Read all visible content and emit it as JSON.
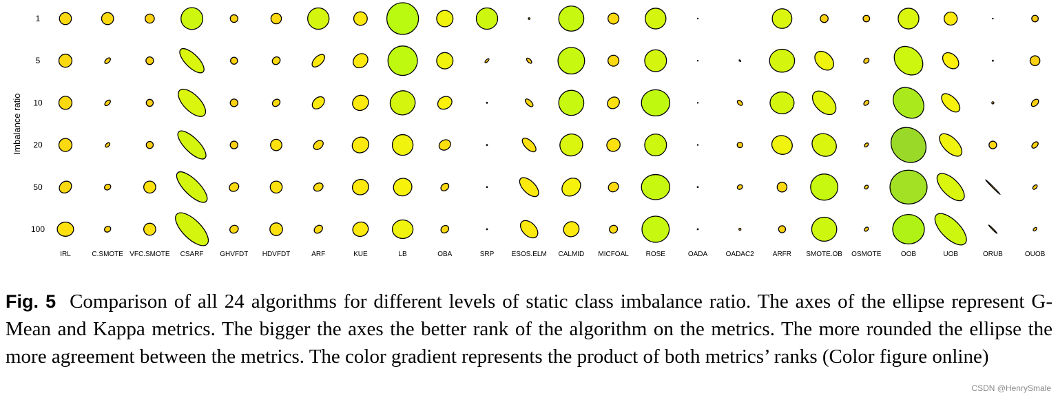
{
  "chart_data": {
    "type": "ellipse-matrix",
    "ylabel": "Imbalance ratio",
    "rows": [
      "1",
      "5",
      "10",
      "20",
      "50",
      "100"
    ],
    "columns": [
      "IRL",
      "C.SMOTE",
      "VFC.SMOTE",
      "CSARF",
      "GHVFDT",
      "HDVFDT",
      "ARF",
      "KUE",
      "LB",
      "OBA",
      "SRP",
      "ESOS.ELM",
      "CALMID",
      "MICFOAL",
      "ROSE",
      "OADA",
      "OADAC2",
      "ARFR",
      "SMOTE.OB",
      "OSMOTE",
      "OOB",
      "UOB",
      "ORUB",
      "OUOB"
    ],
    "cells": [
      [
        [
          0.55,
          0.55,
          0,
          0.35
        ],
        [
          0.55,
          0.55,
          0,
          0.35
        ],
        [
          0.42,
          0.42,
          0,
          0.3
        ],
        [
          1.0,
          1.0,
          0,
          0.85
        ],
        [
          0.35,
          0.35,
          0,
          0.3
        ],
        [
          0.48,
          0.48,
          0,
          0.35
        ],
        [
          0.98,
          0.98,
          0,
          0.8
        ],
        [
          0.62,
          0.62,
          0,
          0.45
        ],
        [
          1.45,
          1.45,
          0,
          1.0
        ],
        [
          0.75,
          0.75,
          0,
          0.6
        ],
        [
          0.98,
          0.98,
          0,
          0.85
        ],
        [
          0.08,
          0.08,
          0,
          0.2
        ],
        [
          1.15,
          1.15,
          0,
          0.9
        ],
        [
          0.5,
          0.5,
          0,
          0.35
        ],
        [
          0.95,
          0.95,
          0,
          0.8
        ],
        [
          0.04,
          0.04,
          0,
          0.2
        ],
        [
          0,
          0,
          0,
          0
        ],
        [
          0.9,
          0.9,
          0,
          0.75
        ],
        [
          0.36,
          0.36,
          0,
          0.3
        ],
        [
          0.3,
          0.3,
          0,
          0.25
        ],
        [
          0.95,
          0.95,
          0,
          0.75
        ],
        [
          0.6,
          0.6,
          0,
          0.45
        ],
        [
          0.04,
          0.04,
          0,
          0.2
        ],
        [
          0.3,
          0.3,
          0,
          0.25
        ]
      ],
      [
        [
          0.6,
          0.6,
          0,
          0.35
        ],
        [
          0.32,
          0.18,
          -45,
          0.3
        ],
        [
          0.35,
          0.35,
          0,
          0.3
        ],
        [
          1.45,
          0.6,
          45,
          0.75
        ],
        [
          0.32,
          0.32,
          0,
          0.3
        ],
        [
          0.38,
          0.33,
          -40,
          0.35
        ],
        [
          0.72,
          0.38,
          -45,
          0.45
        ],
        [
          0.72,
          0.6,
          -40,
          0.45
        ],
        [
          1.35,
          1.35,
          0,
          0.95
        ],
        [
          0.75,
          0.75,
          0,
          0.6
        ],
        [
          0.25,
          0.1,
          -45,
          0.2
        ],
        [
          0.3,
          0.15,
          45,
          0.25
        ],
        [
          1.22,
          1.22,
          0,
          0.9
        ],
        [
          0.5,
          0.5,
          0,
          0.35
        ],
        [
          1.0,
          1.0,
          0,
          0.8
        ],
        [
          0.04,
          0.04,
          0,
          0.2
        ],
        [
          0.1,
          0.05,
          45,
          0.2
        ],
        [
          1.15,
          1.05,
          0,
          0.8
        ],
        [
          1.0,
          0.7,
          45,
          0.6
        ],
        [
          0.28,
          0.2,
          -45,
          0.25
        ],
        [
          1.45,
          1.15,
          45,
          0.85
        ],
        [
          0.85,
          0.6,
          45,
          0.5
        ],
        [
          0.05,
          0.05,
          0,
          0.2
        ],
        [
          0.45,
          0.45,
          0,
          0.3
        ]
      ],
      [
        [
          0.6,
          0.6,
          0,
          0.35
        ],
        [
          0.32,
          0.18,
          -45,
          0.3
        ],
        [
          0.32,
          0.32,
          0,
          0.3
        ],
        [
          1.6,
          0.75,
          45,
          0.75
        ],
        [
          0.35,
          0.35,
          0,
          0.3
        ],
        [
          0.38,
          0.3,
          -40,
          0.35
        ],
        [
          0.65,
          0.45,
          -45,
          0.45
        ],
        [
          0.75,
          0.68,
          -30,
          0.45
        ],
        [
          1.15,
          1.1,
          -20,
          0.8
        ],
        [
          0.68,
          0.55,
          -30,
          0.5
        ],
        [
          0.05,
          0.05,
          0,
          0.2
        ],
        [
          0.45,
          0.22,
          45,
          0.35
        ],
        [
          1.15,
          1.15,
          0,
          0.9
        ],
        [
          0.58,
          0.5,
          -40,
          0.4
        ],
        [
          1.3,
          1.2,
          0,
          0.95
        ],
        [
          0.01,
          0.01,
          0,
          0.2
        ],
        [
          0.28,
          0.18,
          45,
          0.25
        ],
        [
          1.1,
          1.0,
          0,
          0.8
        ],
        [
          1.3,
          0.8,
          45,
          0.7
        ],
        [
          0.28,
          0.18,
          -45,
          0.25
        ],
        [
          1.55,
          1.25,
          45,
          1.1
        ],
        [
          1.05,
          0.55,
          45,
          0.55
        ],
        [
          0.1,
          0.1,
          0,
          0.2
        ],
        [
          0.4,
          0.25,
          -45,
          0.3
        ]
      ],
      [
        [
          0.6,
          0.6,
          0,
          0.35
        ],
        [
          0.25,
          0.15,
          -45,
          0.25
        ],
        [
          0.32,
          0.32,
          0,
          0.3
        ],
        [
          1.7,
          0.65,
          45,
          0.8
        ],
        [
          0.35,
          0.35,
          0,
          0.3
        ],
        [
          0.52,
          0.52,
          0,
          0.4
        ],
        [
          0.5,
          0.35,
          -40,
          0.35
        ],
        [
          0.78,
          0.7,
          -30,
          0.45
        ],
        [
          0.95,
          0.95,
          0,
          0.6
        ],
        [
          0.55,
          0.45,
          -30,
          0.4
        ],
        [
          0.05,
          0.05,
          0,
          0.2
        ],
        [
          0.8,
          0.38,
          45,
          0.4
        ],
        [
          1.05,
          1.0,
          -20,
          0.75
        ],
        [
          0.62,
          0.58,
          -30,
          0.4
        ],
        [
          1.0,
          1.0,
          0,
          0.85
        ],
        [
          0.01,
          0.01,
          0,
          0.2
        ],
        [
          0.25,
          0.25,
          0,
          0.25
        ],
        [
          0.95,
          0.85,
          20,
          0.6
        ],
        [
          1.15,
          1.0,
          30,
          0.75
        ],
        [
          0.22,
          0.14,
          -45,
          0.2
        ],
        [
          1.7,
          1.5,
          45,
          1.2
        ],
        [
          1.3,
          0.65,
          45,
          0.6
        ],
        [
          0.35,
          0.35,
          0,
          0.35
        ],
        [
          0.35,
          0.22,
          -45,
          0.3
        ]
      ],
      [
        [
          0.6,
          0.5,
          -40,
          0.35
        ],
        [
          0.3,
          0.25,
          -30,
          0.3
        ],
        [
          0.55,
          0.55,
          0,
          0.4
        ],
        [
          1.85,
          0.7,
          45,
          0.8
        ],
        [
          0.45,
          0.38,
          -30,
          0.35
        ],
        [
          0.55,
          0.55,
          0,
          0.4
        ],
        [
          0.45,
          0.35,
          -30,
          0.35
        ],
        [
          0.75,
          0.7,
          -20,
          0.45
        ],
        [
          0.85,
          0.8,
          -20,
          0.55
        ],
        [
          0.4,
          0.3,
          -40,
          0.35
        ],
        [
          0.05,
          0.05,
          0,
          0.2
        ],
        [
          1.1,
          0.55,
          45,
          0.45
        ],
        [
          0.92,
          0.75,
          -40,
          0.55
        ],
        [
          0.48,
          0.42,
          -30,
          0.35
        ],
        [
          1.3,
          1.15,
          0,
          0.9
        ],
        [
          0.05,
          0.05,
          0,
          0.2
        ],
        [
          0.25,
          0.2,
          -30,
          0.25
        ],
        [
          0.45,
          0.45,
          0,
          0.35
        ],
        [
          1.25,
          1.2,
          0,
          0.9
        ],
        [
          0.2,
          0.15,
          -45,
          0.25
        ],
        [
          1.7,
          1.55,
          0,
          1.15
        ],
        [
          1.6,
          0.75,
          45,
          0.75
        ],
        [
          0.95,
          0.05,
          45,
          0.2
        ],
        [
          0.25,
          0.15,
          -45,
          0.25
        ]
      ],
      [
        [
          0.75,
          0.65,
          0,
          0.4
        ],
        [
          0.3,
          0.25,
          -30,
          0.3
        ],
        [
          0.55,
          0.55,
          0,
          0.4
        ],
        [
          1.95,
          0.85,
          45,
          0.8
        ],
        [
          0.4,
          0.35,
          -30,
          0.35
        ],
        [
          0.58,
          0.58,
          0,
          0.4
        ],
        [
          0.42,
          0.32,
          -40,
          0.35
        ],
        [
          0.72,
          0.65,
          -20,
          0.45
        ],
        [
          0.95,
          0.85,
          0,
          0.6
        ],
        [
          0.38,
          0.32,
          -40,
          0.35
        ],
        [
          0.05,
          0.05,
          0,
          0.2
        ],
        [
          0.95,
          0.6,
          45,
          0.45
        ],
        [
          0.72,
          0.68,
          -30,
          0.45
        ],
        [
          0.38,
          0.35,
          -30,
          0.35
        ],
        [
          1.25,
          1.2,
          0,
          0.9
        ],
        [
          0.05,
          0.05,
          0,
          0.2
        ],
        [
          0.1,
          0.1,
          0,
          0.2
        ],
        [
          0.32,
          0.32,
          0,
          0.3
        ],
        [
          1.15,
          1.1,
          0,
          0.85
        ],
        [
          0.22,
          0.15,
          -45,
          0.25
        ],
        [
          1.45,
          1.35,
          0,
          1.05
        ],
        [
          1.85,
          0.85,
          45,
          0.85
        ],
        [
          0.55,
          0.05,
          45,
          0.2
        ],
        [
          0.2,
          0.12,
          -45,
          0.2
        ]
      ]
    ]
  },
  "caption": {
    "label": "Fig. 5",
    "text": "Comparison of all 24 algorithms for different levels of static class imbalance ratio. The axes of the ellipse represent G-Mean and Kappa metrics. The bigger the axes the better rank of the algorithm on the metrics. The more rounded the ellipse the more agreement between the metrics. The color gradient represents the product of both metrics’ ranks (Color figure online)"
  },
  "watermark": "CSDN @HenrySmale",
  "colors": {
    "low": "#f7a21b",
    "mid": "#fdf10c",
    "high": "#b9fa10",
    "top": "#93d12f",
    "stroke": "#000000"
  }
}
